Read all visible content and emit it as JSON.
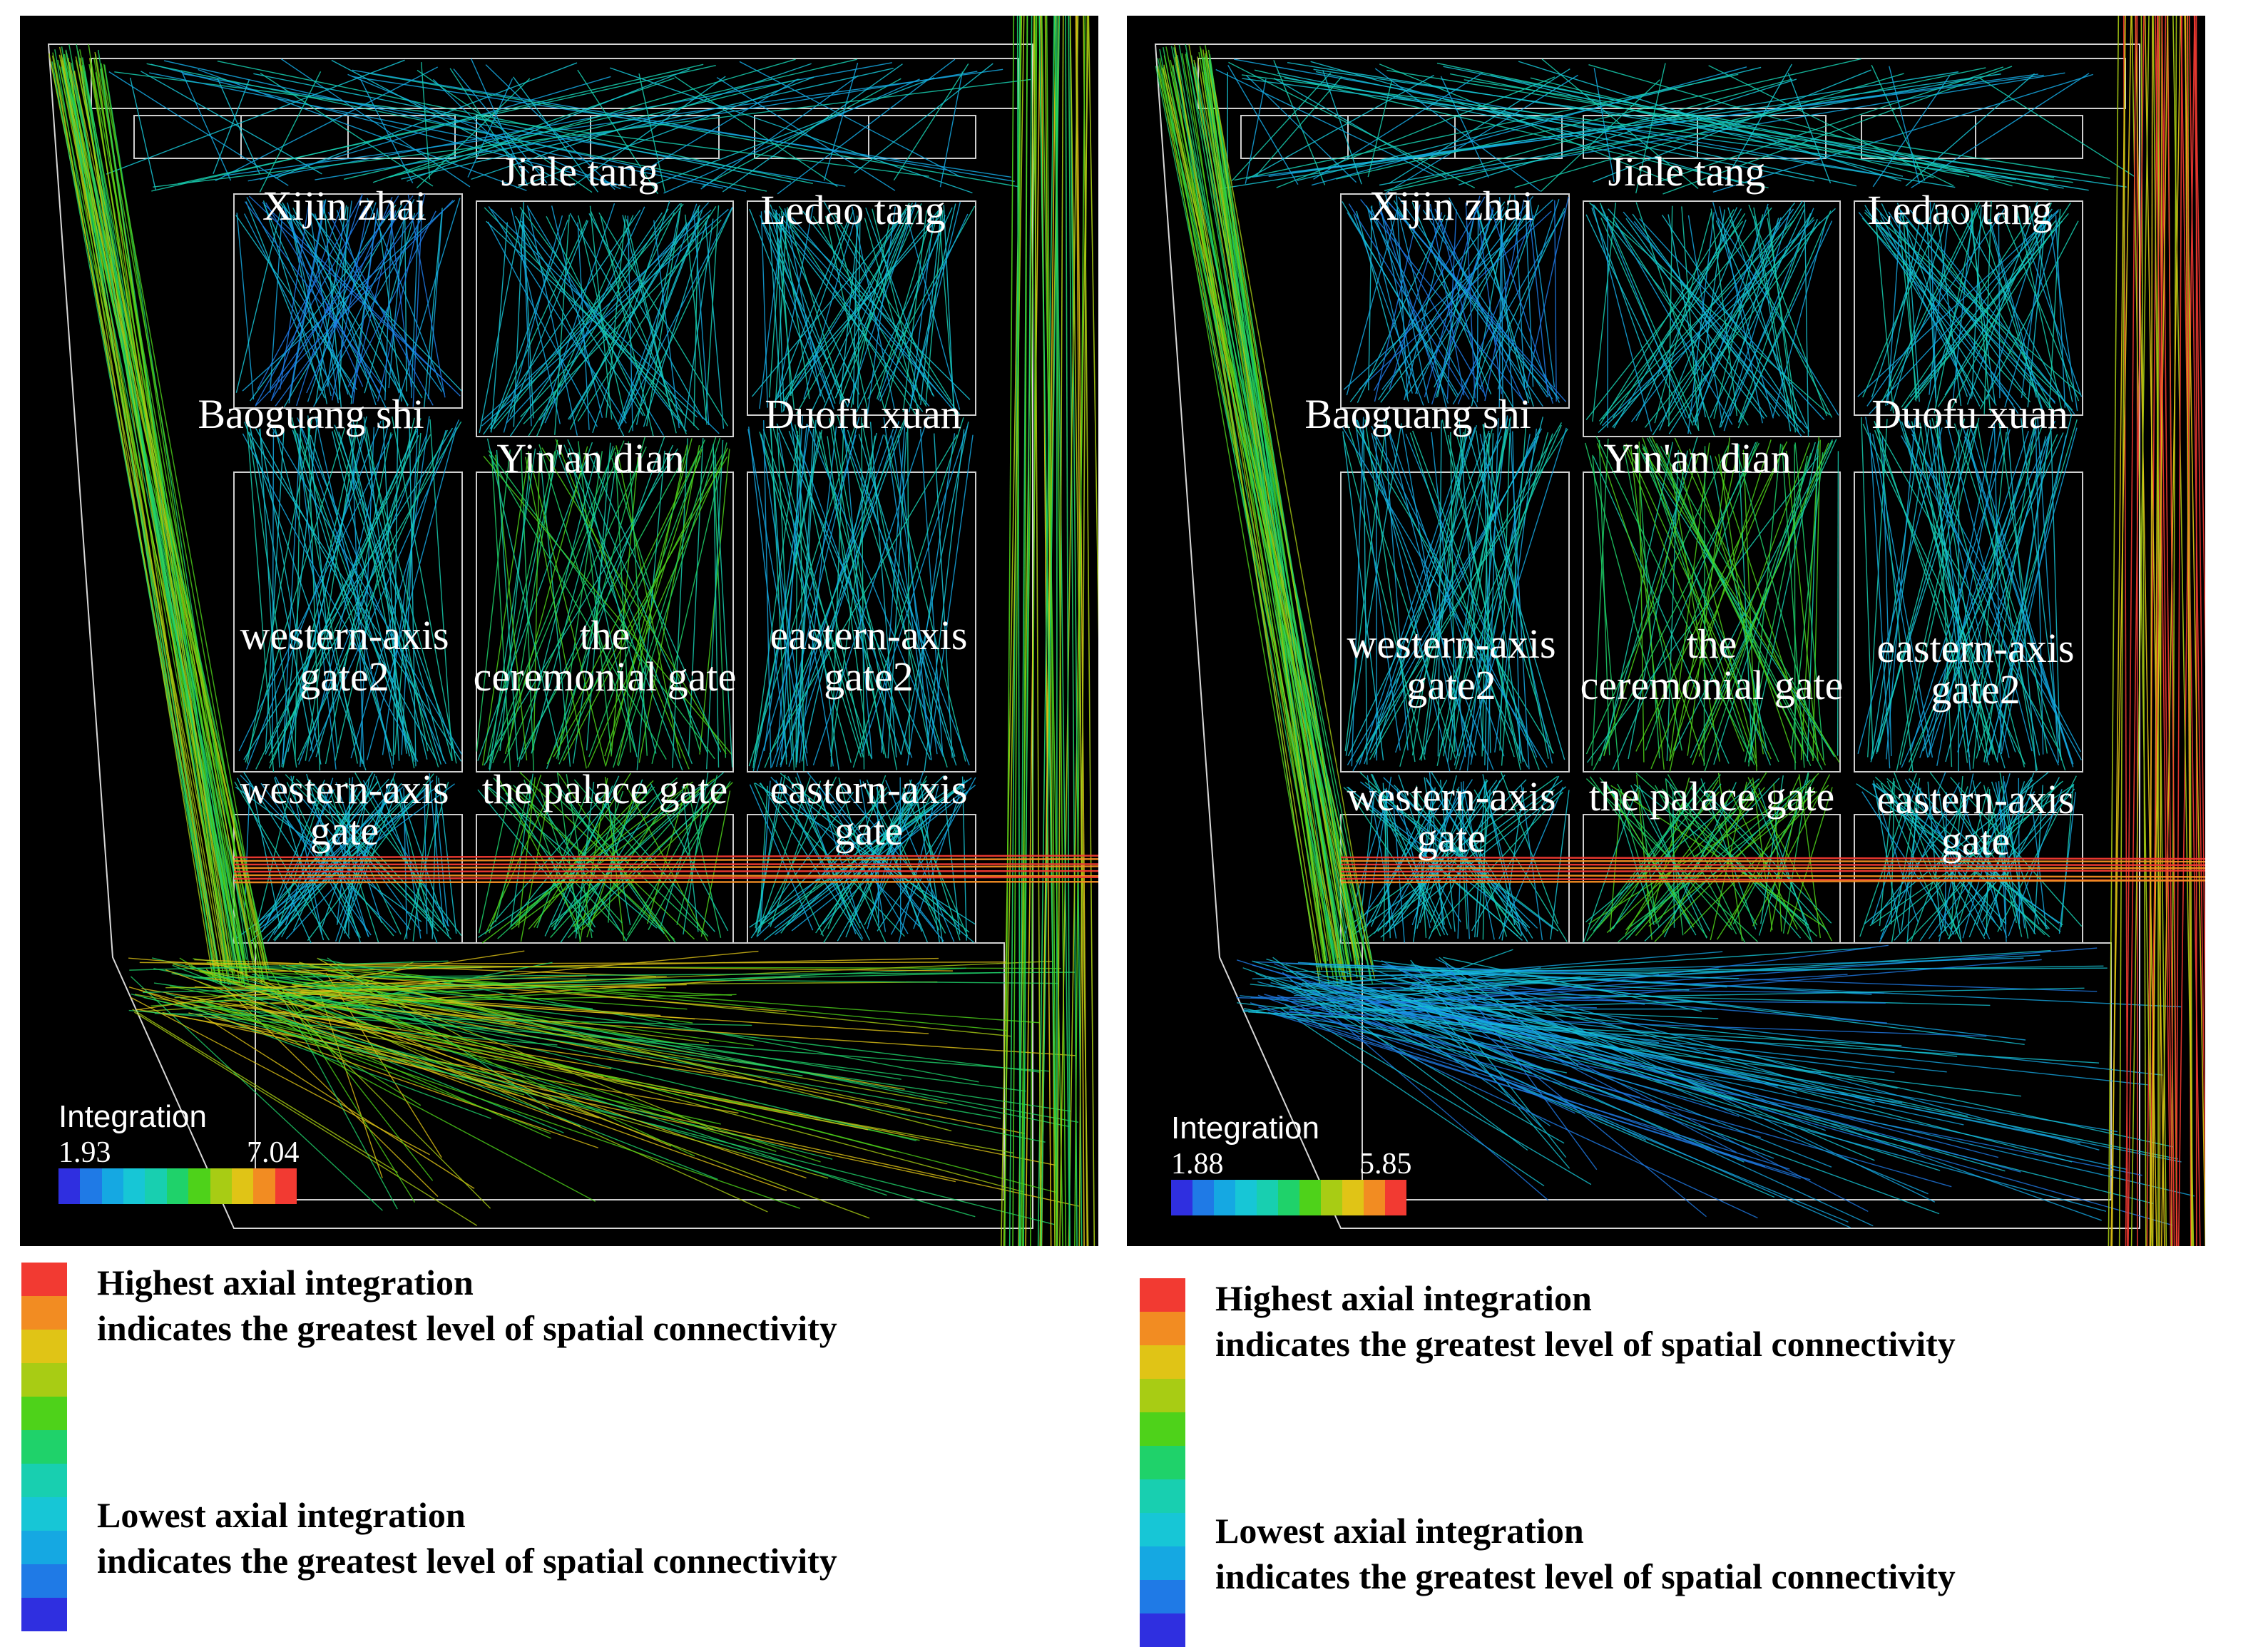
{
  "scale_colors": [
    "#2f2fe0",
    "#1f7ae6",
    "#15a8e2",
    "#17c6d6",
    "#18cfb0",
    "#1fd26a",
    "#4ed21a",
    "#a8cc14",
    "#e0c416",
    "#f28c22",
    "#f23a32"
  ],
  "legend_colors": [
    "#f23a32",
    "#f28c22",
    "#e0c416",
    "#a8cc14",
    "#4ed21a",
    "#1fd26a",
    "#18cfb0",
    "#17c6d6",
    "#15a8e2",
    "#1f7ae6",
    "#2f2fe0"
  ],
  "panels": [
    {
      "id": "before",
      "labels": {
        "xijin_zhai": "Xijin zhai",
        "jiale_tang": "Jiale tang",
        "ledao_tang": "Ledao tang",
        "baoguang_shi": "Baoguang shi",
        "yinan_dian": "Yin'an dian",
        "duofu_xuan": "Duofu xuan",
        "western_gate2_line1": "western-axis",
        "western_gate2_line2": "gate2",
        "ceremonial_line1": "the",
        "ceremonial_line2": "ceremonial gate",
        "eastern_gate2_line1": "eastern-axis",
        "eastern_gate2_line2": "gate2",
        "western_gate_line1": "western-axis",
        "western_gate_line2": "gate",
        "palace_gate": "the palace gate",
        "eastern_gate_line1": "eastern-axis",
        "eastern_gate_line2": "gate"
      },
      "scale": {
        "title": "Integration",
        "min": "1.93",
        "max": "7.04"
      },
      "legend": {
        "high_line1": "Highest axial integration",
        "high_line2": "indicates the greatest level of spatial connectivity",
        "low_line1": "Lowest axial integration",
        "low_line2": "indicates the greatest level of spatial connectivity"
      }
    },
    {
      "id": "after",
      "labels": {
        "xijin_zhai": "Xijin zhai",
        "jiale_tang": "Jiale tang",
        "ledao_tang": "Ledao tang",
        "baoguang_shi": "Baoguang shi",
        "yinan_dian": "Yin'an dian",
        "duofu_xuan": "Duofu xuan",
        "western_gate2_line1": "western-axis",
        "western_gate2_line2": "gate2",
        "ceremonial_line1": "the",
        "ceremonial_line2": "ceremonial gate",
        "eastern_gate2_line1": "eastern-axis",
        "eastern_gate2_line2": "gate2",
        "western_gate_line1": "western-axis",
        "western_gate_line2": "gate",
        "palace_gate": "the palace gate",
        "eastern_gate_line1": "eastern-axis",
        "eastern_gate_line2": "gate"
      },
      "scale": {
        "title": "Integration",
        "min": "1.88",
        "max": "5.85"
      },
      "legend": {
        "high_line1": "Highest axial integration",
        "high_line2": "indicates the greatest level of spatial connectivity",
        "low_line1": "Lowest axial integration",
        "low_line2": "indicates the greatest level of spatial connectivity"
      }
    }
  ]
}
